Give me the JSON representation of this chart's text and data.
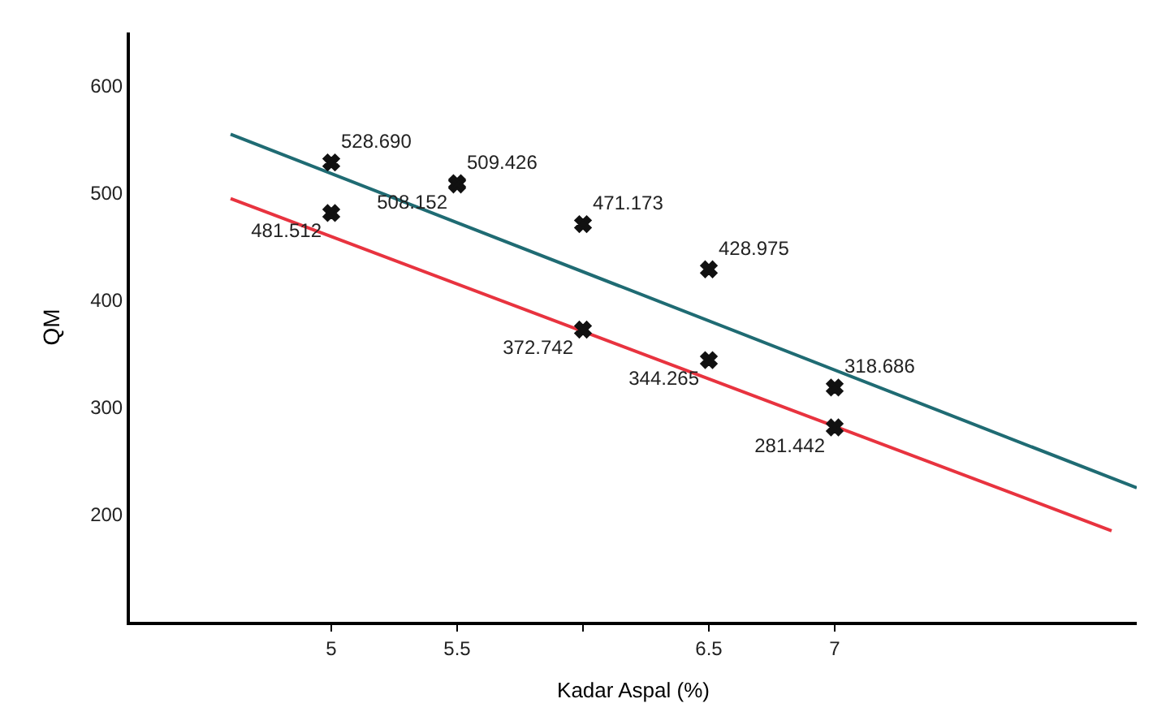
{
  "chart_data": {
    "type": "scatter",
    "xlabel": "Kadar Aspal (%)",
    "ylabel": "QM",
    "xlim": [
      4.2,
      8.2
    ],
    "ylim": [
      100,
      650
    ],
    "xticks": [
      5,
      5.5,
      {
        "value": 6,
        "label": null
      },
      6.5,
      7
    ],
    "yticks": [
      200,
      300,
      400,
      500,
      600
    ],
    "marker": "cross",
    "series": [
      {
        "type": "line",
        "color": "#1f6b73",
        "x": [
          4.6,
          8.2
        ],
        "values": [
          555,
          225
        ],
        "marker": "none"
      },
      {
        "type": "line",
        "color": "#e8333f",
        "x": [
          4.6,
          8.1
        ],
        "values": [
          495,
          185
        ],
        "marker": "none"
      },
      {
        "color": "#111111",
        "x": [
          5,
          5.5,
          6,
          6.5,
          7
        ],
        "values": [
          528.69,
          509.426,
          471.173,
          428.975,
          318.686
        ],
        "value_labels": [
          "528.690",
          "509.426",
          "471.173",
          "428.975",
          "318.686"
        ]
      },
      {
        "color": "#111111",
        "x": [
          5,
          5.5,
          6,
          6.5,
          7
        ],
        "values": [
          481.512,
          508.152,
          372.742,
          344.265,
          281.442
        ],
        "value_labels": [
          "481.512",
          "508.152",
          "372.742",
          "344.265",
          "281.442"
        ]
      }
    ]
  }
}
